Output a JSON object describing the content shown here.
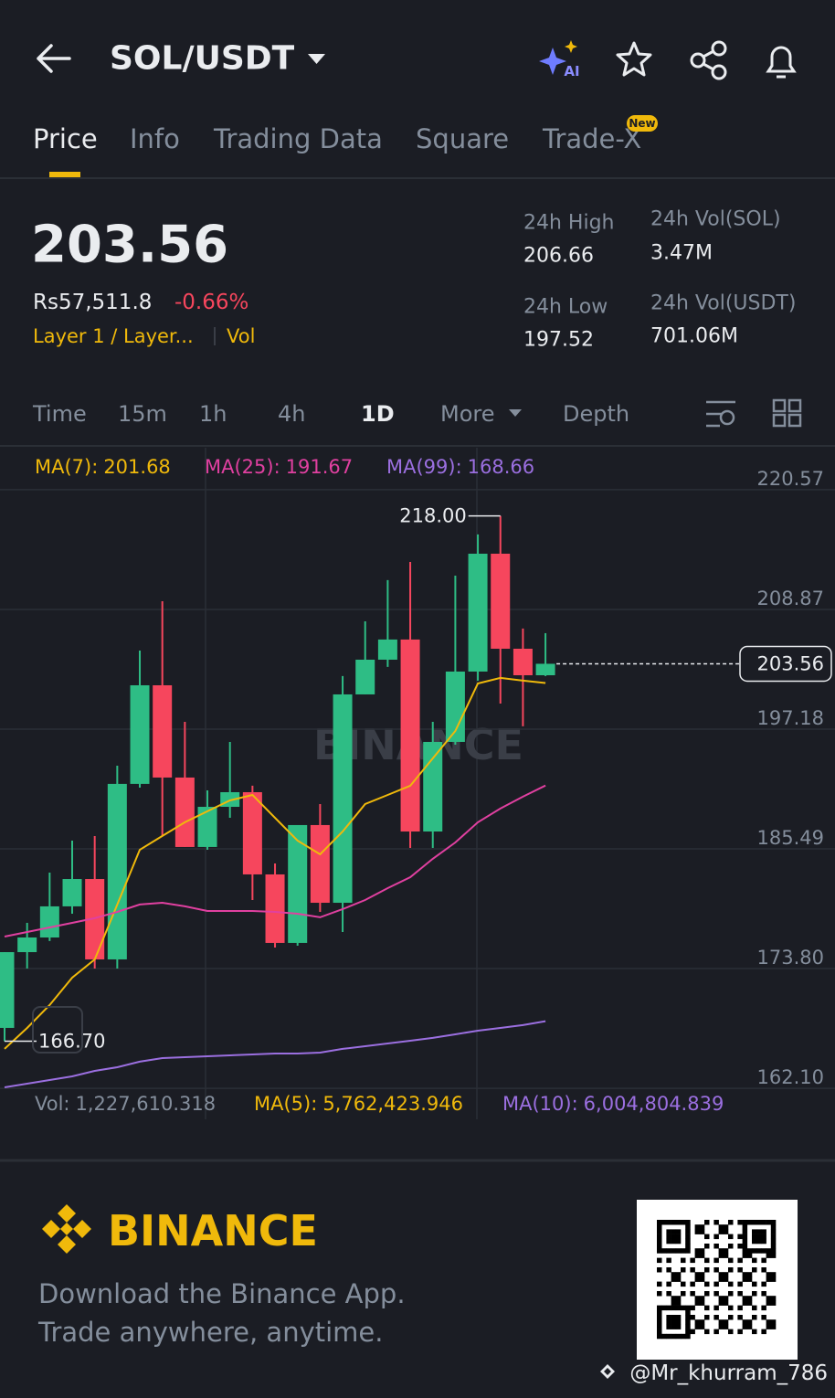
{
  "header": {
    "pair": "SOL/USDT",
    "ai_badge": "AI"
  },
  "tabs": {
    "items": [
      "Price",
      "Info",
      "Trading Data",
      "Square",
      "Trade-X"
    ],
    "new_badge": "New"
  },
  "ticker": {
    "price": "203.56",
    "local_price": "Rs57,511.8",
    "change": "-0.66%",
    "tags": "Layer 1 / Layer...",
    "vol_tag": "Vol",
    "stats": [
      {
        "label": "24h High",
        "value": "206.66"
      },
      {
        "label": "24h Low",
        "value": "197.52"
      },
      {
        "label": "24h Vol(SOL)",
        "value": "3.47M"
      },
      {
        "label": "24h Vol(USDT)",
        "value": "701.06M"
      }
    ]
  },
  "intervals": [
    "Time",
    "15m",
    "1h",
    "4h",
    "1D",
    "More",
    "Depth"
  ],
  "chart_data": {
    "type": "candlestick",
    "watermark": "BINANCE",
    "categories": [
      null,
      null,
      null,
      null,
      null,
      null,
      null,
      null,
      null,
      null,
      null,
      null,
      null,
      null,
      null,
      null,
      null,
      null,
      null,
      null,
      null,
      null,
      null,
      null,
      null
    ],
    "open": [
      168.0,
      175.4,
      176.83,
      179.87,
      182.54,
      174.69,
      191.83,
      201.46,
      192.45,
      185.67,
      189.59,
      191.02,
      182.99,
      176.3,
      187.81,
      180.22,
      200.57,
      203.96,
      205.93,
      187.18,
      195.93,
      202.8,
      214.31,
      205.03,
      202.44
    ],
    "high": [
      175.4,
      178.26,
      183.17,
      186.29,
      186.74,
      193.61,
      204.85,
      209.67,
      197.89,
      191.2,
      195.93,
      191.65,
      184.06,
      187.81,
      189.86,
      202.36,
      207.71,
      211.73,
      213.51,
      197.89,
      212.17,
      216.19,
      218.0,
      207.0,
      206.55
    ],
    "low": [
      166.7,
      173.8,
      176.48,
      179.15,
      173.8,
      173.8,
      191.47,
      186.74,
      185.67,
      185.4,
      188.52,
      180.49,
      175.85,
      176.03,
      179.33,
      177.37,
      200.57,
      203.25,
      185.58,
      185.58,
      195.66,
      201.91,
      199.68,
      197.45,
      202.36
    ],
    "close": [
      175.4,
      176.83,
      179.87,
      182.54,
      174.69,
      191.83,
      201.46,
      192.45,
      185.67,
      189.59,
      191.02,
      182.99,
      176.3,
      187.81,
      180.22,
      200.57,
      203.96,
      205.93,
      187.18,
      195.93,
      202.8,
      214.31,
      205.03,
      202.44,
      203.56
    ],
    "up_color": "#2ebd85",
    "down_color": "#f6465d",
    "series": [
      {
        "name": "MA(7):",
        "color": "#f0b90b",
        "values": [
          165.95,
          168.0,
          170.23,
          172.9,
          174.69,
          180.05,
          185.4,
          186.74,
          188.08,
          189.15,
          190.22,
          190.75,
          188.52,
          186.29,
          184.95,
          187.18,
          189.86,
          190.75,
          191.65,
          194.32,
          197.0,
          201.64,
          202.18,
          201.91,
          201.68
        ]
      },
      {
        "name": "MA(25):",
        "color": "#e040a0",
        "values": [
          176.92,
          177.37,
          177.81,
          178.26,
          178.71,
          179.33,
          180.05,
          180.22,
          179.87,
          179.42,
          179.42,
          179.42,
          179.33,
          179.15,
          178.8,
          179.6,
          180.49,
          181.65,
          182.72,
          184.51,
          186.11,
          188.08,
          189.42,
          190.58,
          191.67
        ]
      },
      {
        "name": "MA(99):",
        "color": "#9b6fe0",
        "values": [
          162.2,
          162.55,
          162.91,
          163.27,
          163.8,
          164.16,
          164.7,
          165.05,
          165.14,
          165.23,
          165.32,
          165.41,
          165.5,
          165.5,
          165.59,
          165.95,
          166.21,
          166.48,
          166.75,
          167.02,
          167.37,
          167.73,
          168.0,
          168.27,
          168.66
        ]
      }
    ],
    "annotations": {
      "high": "218.00",
      "low": "166.70"
    },
    "ylim": [
      161.75,
      224.66
    ],
    "yticks": [
      220.57,
      208.87,
      197.18,
      185.49,
      {
        "value": 173.8,
        "label": "173.80"
      },
      {
        "value": 162.1,
        "label": "162.10"
      }
    ],
    "grid": true,
    "volume_legend": [
      {
        "name": "Vol:",
        "value": "1,227,610.318",
        "color": "#848e9c"
      },
      {
        "name": "MA(5):",
        "value": "5,762,423.946",
        "color": "#f0b90b"
      },
      {
        "name": "MA(10):",
        "value": "6,004,804.839",
        "color": "#9b6fe0"
      }
    ]
  },
  "footer": {
    "brand": "BINANCE",
    "line1": "Download the Binance App.",
    "line2": "Trade anywhere, anytime.",
    "credit": "@Mr_khurram_786"
  }
}
